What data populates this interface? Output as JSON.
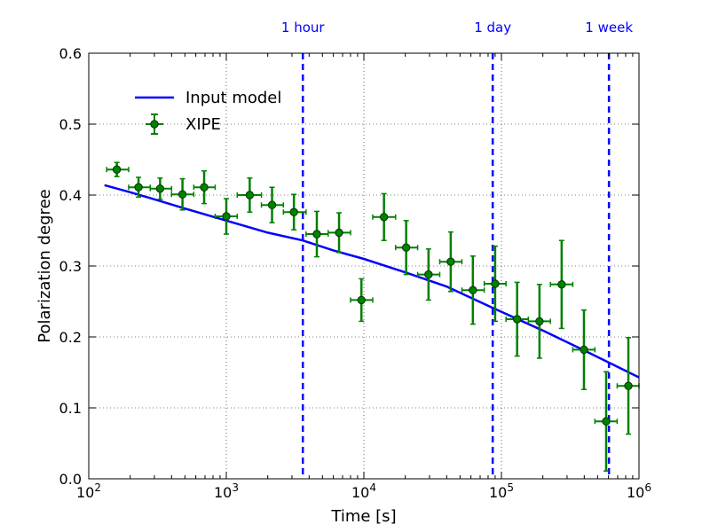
{
  "chart_data": {
    "type": "scatter",
    "xlabel": "Time [s]",
    "ylabel": "Polarization degree",
    "xscale": "log",
    "xlim": [
      100,
      1000000
    ],
    "ylim": [
      0.0,
      0.6
    ],
    "grid": true,
    "legend_position": "top-left",
    "x_ticks": [
      {
        "value": 100,
        "base": "10",
        "exp": "2"
      },
      {
        "value": 1000,
        "base": "10",
        "exp": "3"
      },
      {
        "value": 10000,
        "base": "10",
        "exp": "4"
      },
      {
        "value": 100000,
        "base": "10",
        "exp": "5"
      },
      {
        "value": 1000000,
        "base": "10",
        "exp": "6"
      }
    ],
    "y_ticks": [
      {
        "value": 0.0,
        "label": "0.0"
      },
      {
        "value": 0.1,
        "label": "0.1"
      },
      {
        "value": 0.2,
        "label": "0.2"
      },
      {
        "value": 0.3,
        "label": "0.3"
      },
      {
        "value": 0.4,
        "label": "0.4"
      },
      {
        "value": 0.5,
        "label": "0.5"
      },
      {
        "value": 0.6,
        "label": "0.6"
      }
    ],
    "vertical_markers": [
      {
        "label": "1 hour",
        "x": 3600
      },
      {
        "label": "1 day",
        "x": 86400
      },
      {
        "label": "1 week",
        "x": 604800
      }
    ],
    "series": [
      {
        "name": "Input model",
        "kind": "line",
        "color": "#0000ff",
        "x": [
          130,
          200,
          300,
          500,
          1000,
          2000,
          3600,
          6000,
          10000,
          20000,
          40000,
          86400,
          200000,
          400000,
          1000000
        ],
        "y": [
          0.414,
          0.404,
          0.394,
          0.381,
          0.364,
          0.347,
          0.336,
          0.322,
          0.31,
          0.291,
          0.271,
          0.241,
          0.209,
          0.181,
          0.143
        ]
      },
      {
        "name": "XIPE",
        "kind": "errorbar",
        "color": "#008000",
        "points": [
          {
            "x": 160,
            "y": 0.436,
            "x_low": 135,
            "x_high": 195,
            "y_err": 0.01
          },
          {
            "x": 230,
            "y": 0.411,
            "x_low": 195,
            "x_high": 280,
            "y_err": 0.014
          },
          {
            "x": 330,
            "y": 0.409,
            "x_low": 280,
            "x_high": 400,
            "y_err": 0.015
          },
          {
            "x": 480,
            "y": 0.401,
            "x_low": 400,
            "x_high": 580,
            "y_err": 0.022
          },
          {
            "x": 690,
            "y": 0.411,
            "x_low": 580,
            "x_high": 830,
            "y_err": 0.023
          },
          {
            "x": 1000,
            "y": 0.37,
            "x_low": 830,
            "x_high": 1200,
            "y_err": 0.025
          },
          {
            "x": 1480,
            "y": 0.4,
            "x_low": 1200,
            "x_high": 1800,
            "y_err": 0.024
          },
          {
            "x": 2150,
            "y": 0.386,
            "x_low": 1800,
            "x_high": 2600,
            "y_err": 0.025
          },
          {
            "x": 3100,
            "y": 0.376,
            "x_low": 2600,
            "x_high": 3800,
            "y_err": 0.025
          },
          {
            "x": 4550,
            "y": 0.345,
            "x_low": 3800,
            "x_high": 5500,
            "y_err": 0.032
          },
          {
            "x": 6600,
            "y": 0.347,
            "x_low": 5500,
            "x_high": 8000,
            "y_err": 0.028
          },
          {
            "x": 9600,
            "y": 0.252,
            "x_low": 8000,
            "x_high": 11600,
            "y_err": 0.03
          },
          {
            "x": 14000,
            "y": 0.369,
            "x_low": 11600,
            "x_high": 17000,
            "y_err": 0.033
          },
          {
            "x": 20300,
            "y": 0.326,
            "x_low": 17000,
            "x_high": 24600,
            "y_err": 0.038
          },
          {
            "x": 29500,
            "y": 0.288,
            "x_low": 24600,
            "x_high": 35600,
            "y_err": 0.036
          },
          {
            "x": 42800,
            "y": 0.306,
            "x_low": 35600,
            "x_high": 51600,
            "y_err": 0.042
          },
          {
            "x": 62000,
            "y": 0.266,
            "x_low": 51600,
            "x_high": 75000,
            "y_err": 0.048
          },
          {
            "x": 90000,
            "y": 0.275,
            "x_low": 75000,
            "x_high": 108000,
            "y_err": 0.053
          },
          {
            "x": 130000,
            "y": 0.225,
            "x_low": 108000,
            "x_high": 157000,
            "y_err": 0.052
          },
          {
            "x": 189000,
            "y": 0.222,
            "x_low": 157000,
            "x_high": 227000,
            "y_err": 0.052
          },
          {
            "x": 274000,
            "y": 0.274,
            "x_low": 227000,
            "x_high": 330000,
            "y_err": 0.062
          },
          {
            "x": 398000,
            "y": 0.182,
            "x_low": 330000,
            "x_high": 478000,
            "y_err": 0.056
          },
          {
            "x": 577000,
            "y": 0.081,
            "x_low": 478000,
            "x_high": 694000,
            "y_err": 0.07
          },
          {
            "x": 837000,
            "y": 0.131,
            "x_low": 694000,
            "x_high": 1000000,
            "y_err": 0.068
          }
        ]
      }
    ]
  }
}
